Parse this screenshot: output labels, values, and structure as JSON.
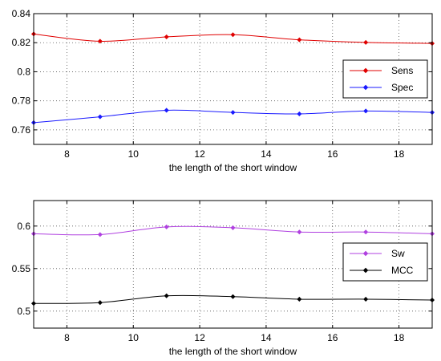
{
  "chart_data": [
    {
      "type": "line",
      "xlabel": "the length of the short window",
      "ylabel": "",
      "title": "",
      "xlim": [
        7,
        19
      ],
      "ylim": [
        0.75,
        0.84
      ],
      "xticks": [
        8,
        10,
        12,
        14,
        16,
        18
      ],
      "yticks": [
        0.76,
        0.78,
        0.8,
        0.82,
        0.84
      ],
      "ytick_labels": [
        "0.76",
        "0.78",
        "0.8",
        "0.82",
        "0.84"
      ],
      "grid": true,
      "legend_position": "right",
      "series": [
        {
          "name": "Sens",
          "color": "#e00000",
          "x": [
            7,
            9,
            11,
            13,
            15,
            17,
            19
          ],
          "y": [
            0.826,
            0.821,
            0.824,
            0.8255,
            0.822,
            0.8202,
            0.8195
          ]
        },
        {
          "name": "Spec",
          "color": "#1a1aff",
          "x": [
            7,
            9,
            11,
            13,
            15,
            17,
            19
          ],
          "y": [
            0.765,
            0.769,
            0.7735,
            0.772,
            0.771,
            0.773,
            0.772
          ]
        }
      ]
    },
    {
      "type": "line",
      "xlabel": "the length of the short window",
      "ylabel": "",
      "title": "",
      "xlim": [
        7,
        19
      ],
      "ylim": [
        0.48,
        0.63
      ],
      "xticks": [
        8,
        10,
        12,
        14,
        16,
        18
      ],
      "yticks": [
        0.5,
        0.55,
        0.6
      ],
      "ytick_labels": [
        "0.5",
        "0.55",
        "0.6"
      ],
      "grid": true,
      "legend_position": "right",
      "series": [
        {
          "name": "Sw",
          "color": "#b040e0",
          "x": [
            7,
            9,
            11,
            13,
            15,
            17,
            19
          ],
          "y": [
            0.591,
            0.59,
            0.599,
            0.598,
            0.593,
            0.593,
            0.591
          ]
        },
        {
          "name": "MCC",
          "color": "#000000",
          "x": [
            7,
            9,
            11,
            13,
            15,
            17,
            19
          ],
          "y": [
            0.509,
            0.51,
            0.518,
            0.517,
            0.514,
            0.514,
            0.513
          ]
        }
      ]
    }
  ]
}
